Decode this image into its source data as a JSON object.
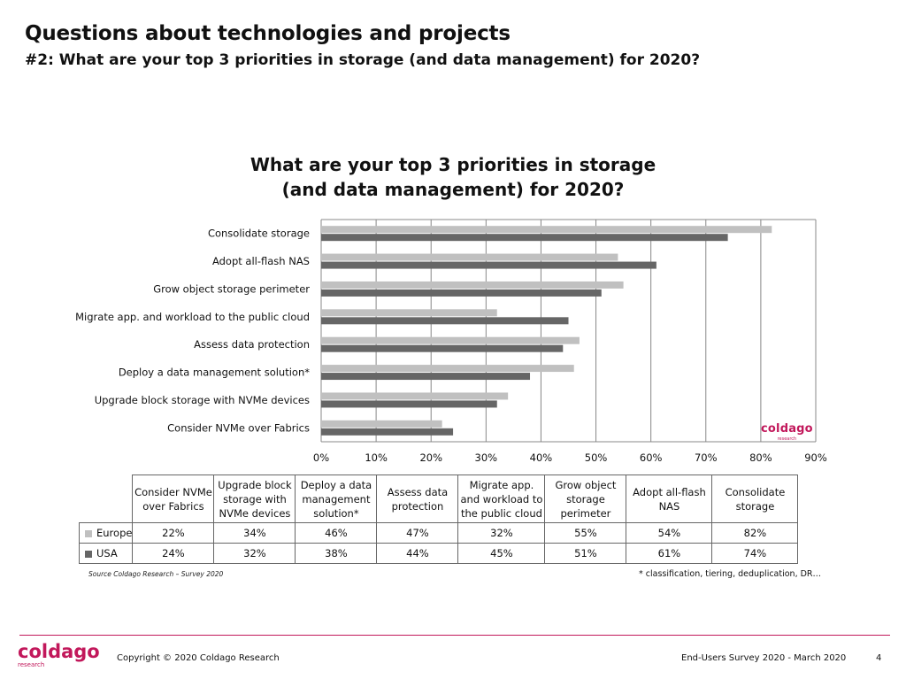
{
  "page": {
    "title": "Questions about technologies and projects",
    "subtitle": "#2: What are your top 3 priorities in storage (and data management) for 2020?"
  },
  "colors": {
    "europe": "#c0c0c0",
    "usa": "#666666",
    "grid": "#888888",
    "brand": "#c2185b"
  },
  "chart_data": {
    "type": "bar",
    "orientation": "horizontal",
    "title_line1": "What are your top 3 priorities in storage",
    "title_line2": "(and data management) for 2020?",
    "categories": [
      "Consolidate storage",
      "Adopt all-flash NAS",
      "Grow object storage perimeter",
      "Migrate app. and workload to the public cloud",
      "Assess data protection",
      "Deploy a data management solution*",
      "Upgrade block storage with NVMe devices",
      "Consider NVMe over Fabrics"
    ],
    "series": [
      {
        "name": "Europe",
        "values": [
          82,
          54,
          55,
          32,
          47,
          46,
          34,
          22
        ]
      },
      {
        "name": "USA",
        "values": [
          74,
          61,
          51,
          45,
          44,
          38,
          32,
          24
        ]
      }
    ],
    "xlim": [
      0,
      90
    ],
    "xticks": [
      "0%",
      "10%",
      "20%",
      "30%",
      "40%",
      "50%",
      "60%",
      "70%",
      "80%",
      "90%"
    ],
    "grid": true,
    "legend": "data table below chart"
  },
  "table": {
    "headers": [
      "Consider NVMe over Fabrics",
      "Upgrade block storage with NVMe devices",
      "Deploy a data management solution*",
      "Assess data protection",
      "Migrate app. and workload to the public cloud",
      "Grow object storage perimeter",
      "Adopt all-flash NAS",
      "Consolidate storage"
    ],
    "rows": [
      {
        "label": "Europe",
        "values": [
          "22%",
          "34%",
          "46%",
          "47%",
          "32%",
          "55%",
          "54%",
          "82%"
        ]
      },
      {
        "label": "USA",
        "values": [
          "24%",
          "32%",
          "38%",
          "44%",
          "45%",
          "51%",
          "61%",
          "74%"
        ]
      }
    ]
  },
  "chart_logo": {
    "name": "coldago",
    "tagline": "research"
  },
  "source_note": "Source Coldago Research – Survey 2020",
  "footnote": "* classification, tiering, deduplication, DR…",
  "footer": {
    "logo": "coldago",
    "logo_sub": "research",
    "copyright": "Copyright © 2020 Coldago Research",
    "survey": "End-Users Survey 2020 - March 2020",
    "page_number": "4"
  }
}
